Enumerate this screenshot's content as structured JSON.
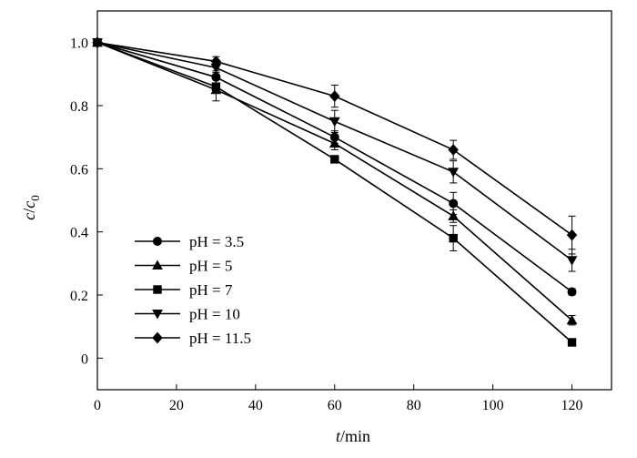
{
  "chart_data": {
    "type": "line",
    "xlabel": "t/min",
    "ylabel": "c/c0",
    "xlim": [
      0,
      130
    ],
    "ylim": [
      -0.1,
      1.1
    ],
    "xticks": [
      0,
      20,
      40,
      60,
      80,
      100,
      120
    ],
    "yticks": [
      0,
      0.2,
      0.4,
      0.6,
      0.8,
      1.0
    ],
    "ytick_labels": [
      "0",
      "0.2",
      "0.4",
      "0.6",
      "0.8",
      "1.0"
    ],
    "grid": false,
    "legend_position": "bottom-left",
    "x": [
      0,
      30,
      60,
      90,
      120
    ],
    "series": [
      {
        "name": "pH = 3.5",
        "marker": "circle",
        "values": [
          1.0,
          0.89,
          0.7,
          0.49,
          0.21
        ],
        "errors": [
          0,
          0.02,
          0.02,
          0.035,
          0.01
        ]
      },
      {
        "name": "pH = 5",
        "marker": "triangle-up",
        "values": [
          1.0,
          0.85,
          0.68,
          0.45,
          0.12
        ],
        "errors": [
          0,
          0.01,
          0.02,
          0.02,
          0.015
        ]
      },
      {
        "name": "pH = 7",
        "marker": "square",
        "values": [
          1.0,
          0.86,
          0.63,
          0.38,
          0.05
        ],
        "errors": [
          0,
          0.045,
          0.01,
          0.04,
          0.01
        ]
      },
      {
        "name": "pH = 10",
        "marker": "triangle-down",
        "values": [
          1.0,
          0.92,
          0.75,
          0.59,
          0.31
        ],
        "errors": [
          0,
          0.02,
          0.035,
          0.035,
          0.035
        ]
      },
      {
        "name": "pH = 11.5",
        "marker": "diamond",
        "values": [
          1.0,
          0.94,
          0.83,
          0.66,
          0.39
        ],
        "errors": [
          0,
          0.015,
          0.035,
          0.03,
          0.06
        ]
      }
    ]
  }
}
